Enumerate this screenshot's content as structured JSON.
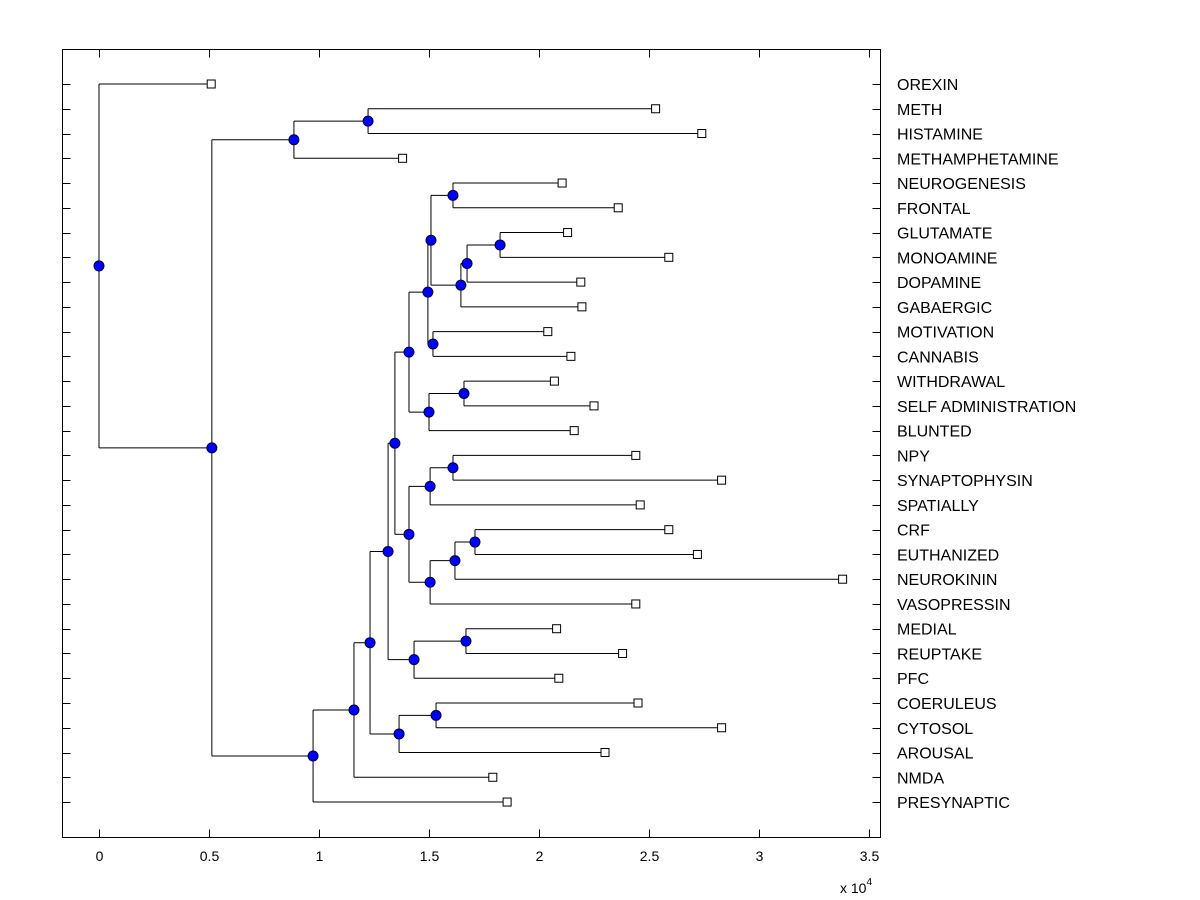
{
  "chart_data": {
    "type": "dendrogram",
    "title": "",
    "xlabel": "",
    "ylabel": "",
    "x_multiplier_label": "x 10",
    "x_multiplier_exponent": "4",
    "xlim": [
      -0.17,
      3.55
    ],
    "xticks": [
      0,
      0.5,
      1,
      1.5,
      2,
      2.5,
      3,
      3.5
    ],
    "xtick_labels": [
      "0",
      "0.5",
      "1",
      "1.5",
      "2",
      "2.5",
      "3",
      "3.5"
    ],
    "grid": false,
    "colors": {
      "line": "#000000",
      "internal_node_fill": "#0000ff",
      "internal_node_edge": "#000033",
      "leaf_fill": "#ffffff",
      "leaf_edge": "#000000"
    },
    "leaves": [
      {
        "label": "OREXIN",
        "x": 0.51
      },
      {
        "label": "METH",
        "x": 2.53
      },
      {
        "label": "HISTAMINE",
        "x": 2.74
      },
      {
        "label": "METHAMPHETAMINE",
        "x": 1.38
      },
      {
        "label": "NEUROGENESIS",
        "x": 2.105
      },
      {
        "label": "FRONTAL",
        "x": 2.36
      },
      {
        "label": "GLUTAMATE",
        "x": 2.13
      },
      {
        "label": "MONOAMINE",
        "x": 2.59
      },
      {
        "label": "DOPAMINE",
        "x": 2.19
      },
      {
        "label": "GABAERGIC",
        "x": 2.195
      },
      {
        "label": "MOTIVATION",
        "x": 2.04
      },
      {
        "label": "CANNABIS",
        "x": 2.145
      },
      {
        "label": "WITHDRAWAL",
        "x": 2.07
      },
      {
        "label": "SELF ADMINISTRATION",
        "x": 2.25
      },
      {
        "label": "BLUNTED",
        "x": 2.16
      },
      {
        "label": "NPY",
        "x": 2.44
      },
      {
        "label": "SYNAPTOPHYSIN",
        "x": 2.83
      },
      {
        "label": "SPATIALLY",
        "x": 2.46
      },
      {
        "label": "CRF",
        "x": 2.59
      },
      {
        "label": "EUTHANIZED",
        "x": 2.72
      },
      {
        "label": "NEUROKININ",
        "x": 3.38
      },
      {
        "label": "VASOPRESSIN",
        "x": 2.44
      },
      {
        "label": "MEDIAL",
        "x": 2.08
      },
      {
        "label": "REUPTAKE",
        "x": 2.38
      },
      {
        "label": "PFC",
        "x": 2.09
      },
      {
        "label": "COERULEUS",
        "x": 2.45
      },
      {
        "label": "CYTOSOL",
        "x": 2.83
      },
      {
        "label": "AROUSAL",
        "x": 2.3
      },
      {
        "label": "NMDA",
        "x": 1.79
      },
      {
        "label": "PRESYNAPTIC",
        "x": 1.855
      }
    ],
    "internal_nodes": {
      "root": {
        "x": 0.0,
        "children": [
          "L0",
          "n1"
        ]
      },
      "n1": {
        "x": 0.513,
        "children": [
          "n2",
          "n4"
        ]
      },
      "n2": {
        "x": 0.886,
        "children": [
          "n3",
          "L3"
        ]
      },
      "n3": {
        "x": 1.223,
        "children": [
          "L1",
          "L2"
        ]
      },
      "n4": {
        "x": 0.973,
        "children": [
          "n5",
          "L29"
        ]
      },
      "n5": {
        "x": 1.159,
        "children": [
          "n6",
          "L28"
        ]
      },
      "n6": {
        "x": 1.232,
        "children": [
          "n7",
          "n27"
        ]
      },
      "n7": {
        "x": 1.314,
        "children": [
          "n8",
          "n25"
        ]
      },
      "n8": {
        "x": 1.345,
        "children": [
          "n9",
          "n19"
        ]
      },
      "n9": {
        "x": 1.409,
        "children": [
          "n10",
          "n17"
        ]
      },
      "n10": {
        "x": 1.495,
        "children": [
          "n11",
          "n16"
        ]
      },
      "n11": {
        "x": 1.509,
        "children": [
          "n12",
          "n13"
        ]
      },
      "n12": {
        "x": 1.609,
        "children": [
          "L4",
          "L5"
        ]
      },
      "n13": {
        "x": 1.645,
        "children": [
          "n14",
          "L9"
        ]
      },
      "n14": {
        "x": 1.673,
        "children": [
          "n15",
          "L8"
        ]
      },
      "n15": {
        "x": 1.823,
        "children": [
          "L6",
          "L7"
        ]
      },
      "n16": {
        "x": 1.518,
        "children": [
          "L10",
          "L11"
        ]
      },
      "n17": {
        "x": 1.5,
        "children": [
          "n18",
          "L14"
        ]
      },
      "n18": {
        "x": 1.659,
        "children": [
          "L12",
          "L13"
        ]
      },
      "n19": {
        "x": 1.409,
        "children": [
          "n20",
          "n22"
        ]
      },
      "n20": {
        "x": 1.505,
        "children": [
          "n21",
          "L17"
        ]
      },
      "n21": {
        "x": 1.609,
        "children": [
          "L15",
          "L16"
        ]
      },
      "n22": {
        "x": 1.505,
        "children": [
          "n23",
          "L21"
        ]
      },
      "n23": {
        "x": 1.618,
        "children": [
          "n24",
          "L20"
        ]
      },
      "n24": {
        "x": 1.709,
        "children": [
          "L18",
          "L19"
        ]
      },
      "n25": {
        "x": 1.432,
        "children": [
          "n26",
          "L24"
        ]
      },
      "n26": {
        "x": 1.668,
        "children": [
          "L22",
          "L23"
        ]
      },
      "n27": {
        "x": 1.364,
        "children": [
          "n28",
          "L27"
        ]
      },
      "n28": {
        "x": 1.532,
        "children": [
          "L25",
          "L26"
        ]
      }
    }
  }
}
